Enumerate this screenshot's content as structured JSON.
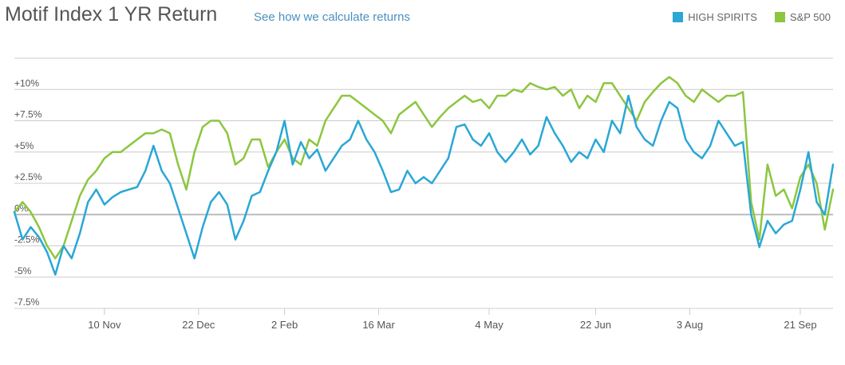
{
  "header": {
    "title": "Motif Index 1 YR Return",
    "link": "See how we calculate returns"
  },
  "colors": {
    "high_spirits": "#2aa7d6",
    "sp500": "#8cc63f",
    "grid": "#cccccc",
    "zero_line": "#bbbbbb"
  },
  "chart_data": {
    "type": "line",
    "title": "Motif Index 1 YR Return",
    "xlabel": "",
    "ylabel": "",
    "x_ticks": [
      "10 Nov",
      "22 Dec",
      "2 Feb",
      "16 Mar",
      "4 May",
      "22 Jun",
      "3 Aug",
      "21 Sep"
    ],
    "y_ticks": [
      "+10%",
      "+7.5%",
      "+5%",
      "+2.5%",
      "0%",
      "-2.5%",
      "-5%",
      "-7.5%"
    ],
    "ylim": [
      -7.5,
      12.5
    ],
    "grid": true,
    "legend_position": "top-right",
    "x_index_range": [
      0,
      100
    ],
    "x_tick_index": [
      11,
      22.5,
      33,
      44.5,
      58,
      71,
      82.5,
      96
    ],
    "series": [
      {
        "name": "HIGH SPIRITS",
        "values": [
          0.2,
          -2.0,
          -1.0,
          -1.8,
          -3.0,
          -4.8,
          -2.5,
          -3.5,
          -1.5,
          1.0,
          2.0,
          0.8,
          1.4,
          1.8,
          2.0,
          2.2,
          3.5,
          5.5,
          3.5,
          2.5,
          0.5,
          -1.5,
          -3.5,
          -1.0,
          1.0,
          1.8,
          0.8,
          -2.0,
          -0.5,
          1.5,
          1.8,
          3.5,
          5.0,
          7.5,
          4.0,
          5.8,
          4.5,
          5.2,
          3.5,
          4.5,
          5.5,
          6.0,
          7.5,
          6.0,
          5.0,
          3.5,
          1.8,
          2.0,
          3.5,
          2.5,
          3.0,
          2.5,
          3.5,
          4.5,
          7.0,
          7.2,
          6.0,
          5.5,
          6.5,
          5.0,
          4.2,
          5.0,
          6.0,
          4.8,
          5.5,
          7.8,
          6.5,
          5.5,
          4.2,
          5.0,
          4.5,
          6.0,
          5.0,
          7.5,
          6.5,
          9.5,
          7.0,
          6.0,
          5.5,
          7.5,
          9.0,
          8.5,
          6.0,
          5.0,
          4.5,
          5.5,
          7.5,
          6.5,
          5.5,
          5.8,
          0.0,
          -2.6,
          -0.5,
          -1.5,
          -0.8,
          -0.5,
          2.0,
          5.0,
          1.0,
          0.0,
          4.0
        ],
        "color": "#2aa7d6"
      },
      {
        "name": "S&P 500",
        "values": [
          0.2,
          1.0,
          0.2,
          -1.0,
          -2.5,
          -3.5,
          -2.5,
          -0.5,
          1.5,
          2.8,
          3.5,
          4.5,
          5.0,
          5.0,
          5.5,
          6.0,
          6.5,
          6.5,
          6.8,
          6.5,
          4.0,
          2.0,
          5.0,
          7.0,
          7.5,
          7.5,
          6.5,
          4.0,
          4.5,
          6.0,
          6.0,
          3.8,
          5.0,
          6.0,
          4.5,
          4.0,
          6.0,
          5.5,
          7.5,
          8.5,
          9.5,
          9.5,
          9.0,
          8.5,
          8.0,
          7.5,
          6.5,
          8.0,
          8.5,
          9.0,
          8.0,
          7.0,
          7.8,
          8.5,
          9.0,
          9.5,
          9.0,
          9.2,
          8.5,
          9.5,
          9.5,
          10.0,
          9.8,
          10.5,
          10.2,
          10.0,
          10.2,
          9.5,
          10.0,
          8.5,
          9.5,
          9.0,
          10.5,
          10.5,
          9.5,
          8.5,
          7.5,
          9.0,
          9.8,
          10.5,
          11.0,
          10.5,
          9.5,
          9.0,
          10.0,
          9.5,
          9.0,
          9.5,
          9.5,
          9.8,
          1.0,
          -2.0,
          4.0,
          1.5,
          2.0,
          0.5,
          3.0,
          4.0,
          2.5,
          -1.2,
          2.0
        ],
        "color": "#8cc63f"
      }
    ]
  }
}
